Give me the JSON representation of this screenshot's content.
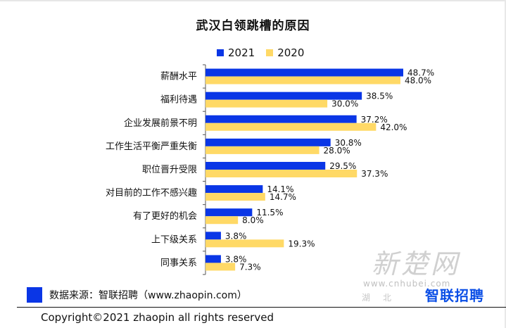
{
  "chart_data": {
    "type": "bar",
    "orientation": "horizontal",
    "title": "武汉白领跳槽的原因",
    "categories": [
      "薪酬水平",
      "福利待遇",
      "企业发展前景不明",
      "工作生活平衡严重失衡",
      "职位晋升受限",
      "对目前的工作不感兴趣",
      "有了更好的机会",
      "上下级关系",
      "同事关系"
    ],
    "series": [
      {
        "name": "2021",
        "color": "#0a36e6",
        "values": [
          48.7,
          38.5,
          37.2,
          30.8,
          29.5,
          14.1,
          11.5,
          3.8,
          3.8
        ]
      },
      {
        "name": "2020",
        "color": "#ffd966",
        "values": [
          48.0,
          30.0,
          42.0,
          28.0,
          37.3,
          14.7,
          8.0,
          19.3,
          7.3
        ]
      }
    ],
    "value_suffix": "%",
    "xlim": [
      0,
      50
    ],
    "legend_position": "top",
    "grid": false
  },
  "source_text": "数据来源：智联招聘（www.zhaopin.com）",
  "copyright_text": "Copyright©2021 zhaopin all rights reserved",
  "watermark": {
    "text": "新楚网",
    "url": "www.cnhubei.com",
    "sub": "湖北"
  },
  "brand_text": "智联招聘"
}
